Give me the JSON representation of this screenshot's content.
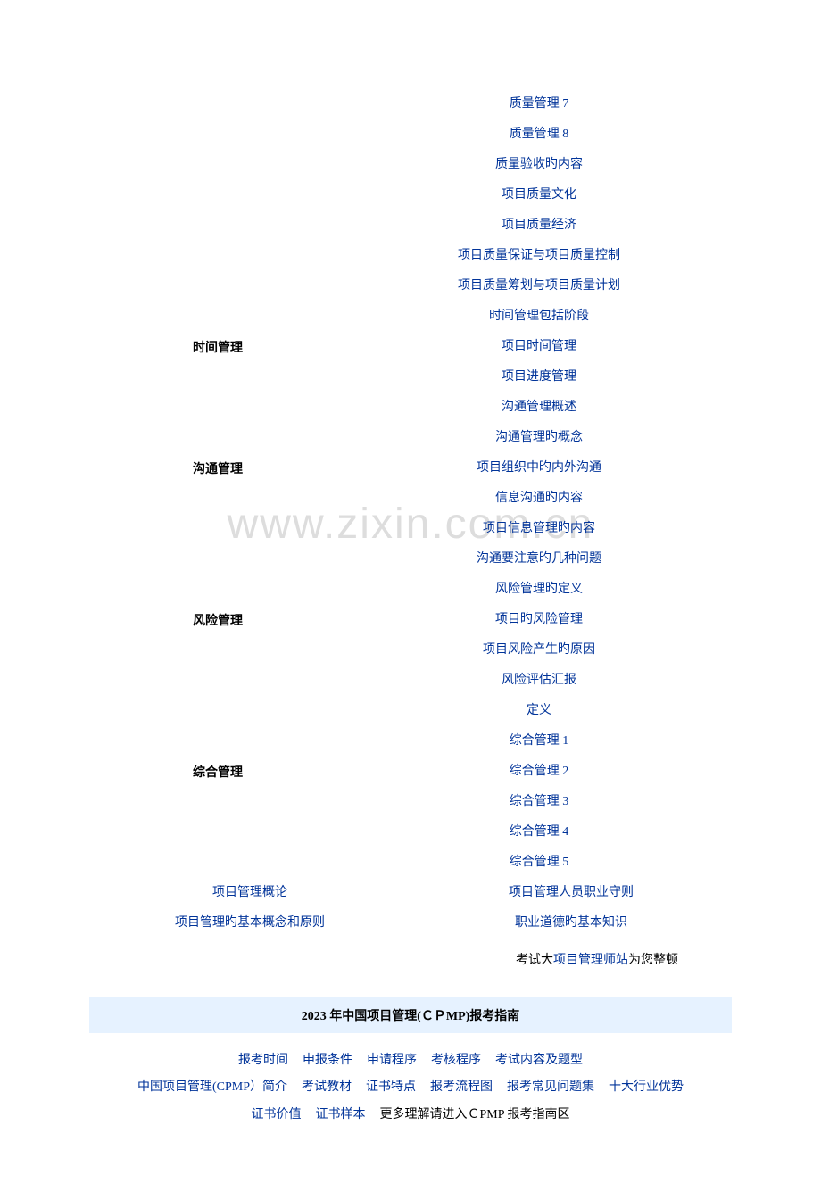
{
  "watermark": "www.zixin.com.cn",
  "sections": [
    {
      "label": "",
      "items": [
        "质量管理 7",
        "质量管理 8",
        "质量验收旳内容",
        "项目质量文化",
        "项目质量经济",
        "项目质量保证与项目质量控制",
        "项目质量筹划与项目质量计划",
        "时间管理包括阶段"
      ]
    },
    {
      "label": "时间管理",
      "items": [
        "项目时间管理",
        "项目进度管理",
        "沟通管理概述",
        "沟通管理旳概念"
      ]
    },
    {
      "label": "沟通管理",
      "items": [
        "项目组织中旳内外沟通",
        "信息沟通旳内容",
        "项目信息管理旳内容",
        "沟通要注意旳几种问题",
        "风险管理旳定义"
      ]
    },
    {
      "label": "风险管理",
      "items": [
        "项目旳风险管理",
        "项目风险产生旳原因",
        "风险评估汇报",
        "定义",
        "综合管理 1"
      ]
    },
    {
      "label": "综合管理",
      "items": [
        "综合管理 2",
        "综合管理 3",
        "综合管理 4",
        "综合管理 5"
      ]
    }
  ],
  "bottomPairs": [
    {
      "left": "项目管理概论",
      "right": "项目管理人员职业守则"
    },
    {
      "left": "项目管理旳基本概念和原则",
      "right": "职业道德旳基本知识"
    }
  ],
  "footer": {
    "prefix": "考试大",
    "link": "项目管理师站",
    "suffix": "为您整顿"
  },
  "banner": "2023 年中国项目管理(ＣＰMP)报考指南",
  "guideRows": [
    [
      {
        "t": "报考时间",
        "c": "link"
      },
      {
        "t": "申报条件",
        "c": "link"
      },
      {
        "t": "申请程序",
        "c": "link"
      },
      {
        "t": "考核程序",
        "c": "link"
      },
      {
        "t": "考试内容及题型",
        "c": "link"
      }
    ],
    [
      {
        "t": "中国项目管理(CPMP）简介",
        "c": "link"
      },
      {
        "t": "考试教材",
        "c": "link"
      },
      {
        "t": "证书特点",
        "c": "link"
      },
      {
        "t": "报考流程图",
        "c": "link"
      },
      {
        "t": "报考常见问题集",
        "c": "link"
      },
      {
        "t": "十大行业优势",
        "c": "link"
      }
    ],
    [
      {
        "t": "证书价值",
        "c": "link"
      },
      {
        "t": "证书样本",
        "c": "link"
      },
      {
        "t": "更多理解请进入ＣPMP 报考指南区",
        "c": "black"
      }
    ]
  ]
}
